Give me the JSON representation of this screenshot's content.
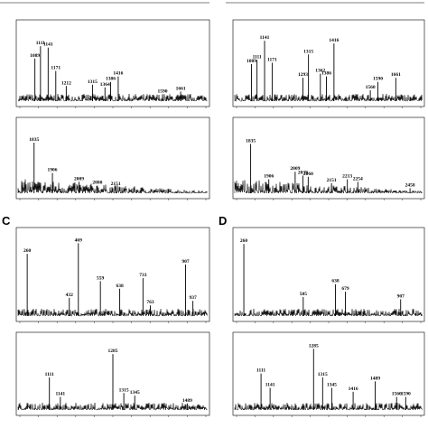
{
  "panel_labels": {
    "C": "C",
    "D": "D"
  },
  "chart_data": [
    {
      "id": "top-left-a",
      "type": "line",
      "peaks": [
        {
          "x": 1089,
          "label": "1089"
        },
        {
          "x": 1111,
          "label": "1111"
        },
        {
          "x": 1141,
          "label": "1141"
        },
        {
          "x": 1171,
          "label": "1171"
        },
        {
          "x": 1212,
          "label": "1212"
        },
        {
          "x": 1315,
          "label": "1315"
        },
        {
          "x": 1364,
          "label": "1364"
        },
        {
          "x": 1386,
          "label": "1386"
        },
        {
          "x": 1416,
          "label": "1416"
        },
        {
          "x": 1590,
          "label": "1590"
        },
        {
          "x": 1661,
          "label": "1661"
        }
      ]
    },
    {
      "id": "top-left-b",
      "type": "line",
      "peaks": [
        {
          "x": 1835,
          "label": "1835"
        },
        {
          "x": 1906,
          "label": "1906"
        },
        {
          "x": 2009,
          "label": "2009"
        },
        {
          "x": 2080,
          "label": "2080"
        },
        {
          "x": 2151,
          "label": "2151"
        }
      ]
    },
    {
      "id": "top-right-a",
      "type": "line",
      "peaks": [
        {
          "x": 1089,
          "label": "1089"
        },
        {
          "x": 1111,
          "label": "1111"
        },
        {
          "x": 1141,
          "label": "1141"
        },
        {
          "x": 1171,
          "label": "1171"
        },
        {
          "x": 1293,
          "label": "1293"
        },
        {
          "x": 1315,
          "label": "1315"
        },
        {
          "x": 1362,
          "label": "1362"
        },
        {
          "x": 1386,
          "label": "1386"
        },
        {
          "x": 1416,
          "label": "1416"
        },
        {
          "x": 1560,
          "label": "1560"
        },
        {
          "x": 1590,
          "label": "1590"
        },
        {
          "x": 1661,
          "label": "1661"
        }
      ]
    },
    {
      "id": "top-right-b",
      "type": "line",
      "peaks": [
        {
          "x": 1835,
          "label": "1835"
        },
        {
          "x": 1906,
          "label": "1906"
        },
        {
          "x": 2009,
          "label": "2009"
        },
        {
          "x": 2039,
          "label": "2039"
        },
        {
          "x": 2060,
          "label": "2060"
        },
        {
          "x": 2151,
          "label": "2151"
        },
        {
          "x": 2213,
          "label": "2213"
        },
        {
          "x": 2254,
          "label": "2254"
        },
        {
          "x": 2458,
          "label": "2458"
        }
      ]
    },
    {
      "id": "C-a",
      "type": "line",
      "panel": "C",
      "peaks": [
        {
          "x": 260,
          "label": "260"
        },
        {
          "x": 432,
          "label": "432"
        },
        {
          "x": 469,
          "label": "469"
        },
        {
          "x": 559,
          "label": "559"
        },
        {
          "x": 638,
          "label": "638"
        },
        {
          "x": 733,
          "label": "733"
        },
        {
          "x": 763,
          "label": "763"
        },
        {
          "x": 907,
          "label": "907"
        },
        {
          "x": 937,
          "label": "937"
        }
      ]
    },
    {
      "id": "C-b",
      "type": "line",
      "panel": "C",
      "peaks": [
        {
          "x": 1111,
          "label": "1111"
        },
        {
          "x": 1141,
          "label": "1141"
        },
        {
          "x": 1285,
          "label": "1285"
        },
        {
          "x": 1315,
          "label": "1315"
        },
        {
          "x": 1345,
          "label": "1345"
        },
        {
          "x": 1489,
          "label": "1489"
        }
      ]
    },
    {
      "id": "D-a",
      "type": "line",
      "panel": "D",
      "peaks": [
        {
          "x": 260,
          "label": "260"
        },
        {
          "x": 505,
          "label": "505"
        },
        {
          "x": 638,
          "label": "638"
        },
        {
          "x": 679,
          "label": "679"
        },
        {
          "x": 907,
          "label": "907"
        }
      ]
    },
    {
      "id": "D-b",
      "type": "line",
      "panel": "D",
      "peaks": [
        {
          "x": 1111,
          "label": "1111"
        },
        {
          "x": 1141,
          "label": "1141"
        },
        {
          "x": 1285,
          "label": "1285"
        },
        {
          "x": 1315,
          "label": "1315"
        },
        {
          "x": 1345,
          "label": "1345"
        },
        {
          "x": 1416,
          "label": "1416"
        },
        {
          "x": 1489,
          "label": "1489"
        },
        {
          "x": 1560,
          "label": "1560"
        },
        {
          "x": 1590,
          "label": "1590"
        }
      ]
    }
  ]
}
